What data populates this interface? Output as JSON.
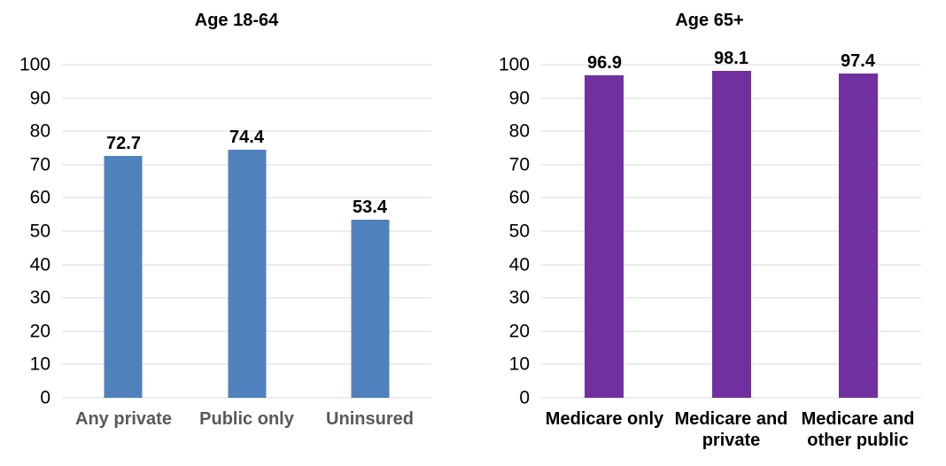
{
  "figure": {
    "background": "#FFFFFF"
  },
  "chart_data": [
    {
      "type": "bar",
      "title": "Age 18-64",
      "categories": [
        "Any private",
        "Public only",
        "Uninsured"
      ],
      "values": [
        72.7,
        74.4,
        53.4
      ],
      "data_labels": [
        "72.7",
        "74.4",
        "53.4"
      ],
      "bar_color": "#4F81BD",
      "category_label_color": "#595959",
      "xlabel": "",
      "ylabel": "",
      "ylim": [
        0,
        100
      ],
      "ytick_interval": 10,
      "yticks": [
        0,
        10,
        20,
        30,
        40,
        50,
        60,
        70,
        80,
        90,
        100
      ],
      "grid": true,
      "gridline_color": "#D9D9D9",
      "legend": "none"
    },
    {
      "type": "bar",
      "title": "Age 65+",
      "categories": [
        "Medicare only",
        "Medicare and private",
        "Medicare and other public"
      ],
      "values": [
        96.9,
        98.1,
        97.4
      ],
      "data_labels": [
        "96.9",
        "98.1",
        "97.4"
      ],
      "bar_color": "#7030A0",
      "category_label_color": "#000000",
      "xlabel": "",
      "ylabel": "",
      "ylim": [
        0,
        100
      ],
      "ytick_interval": 10,
      "yticks": [
        0,
        10,
        20,
        30,
        40,
        50,
        60,
        70,
        80,
        90,
        100
      ],
      "grid": true,
      "gridline_color": "#D9D9D9",
      "legend": "none"
    }
  ]
}
